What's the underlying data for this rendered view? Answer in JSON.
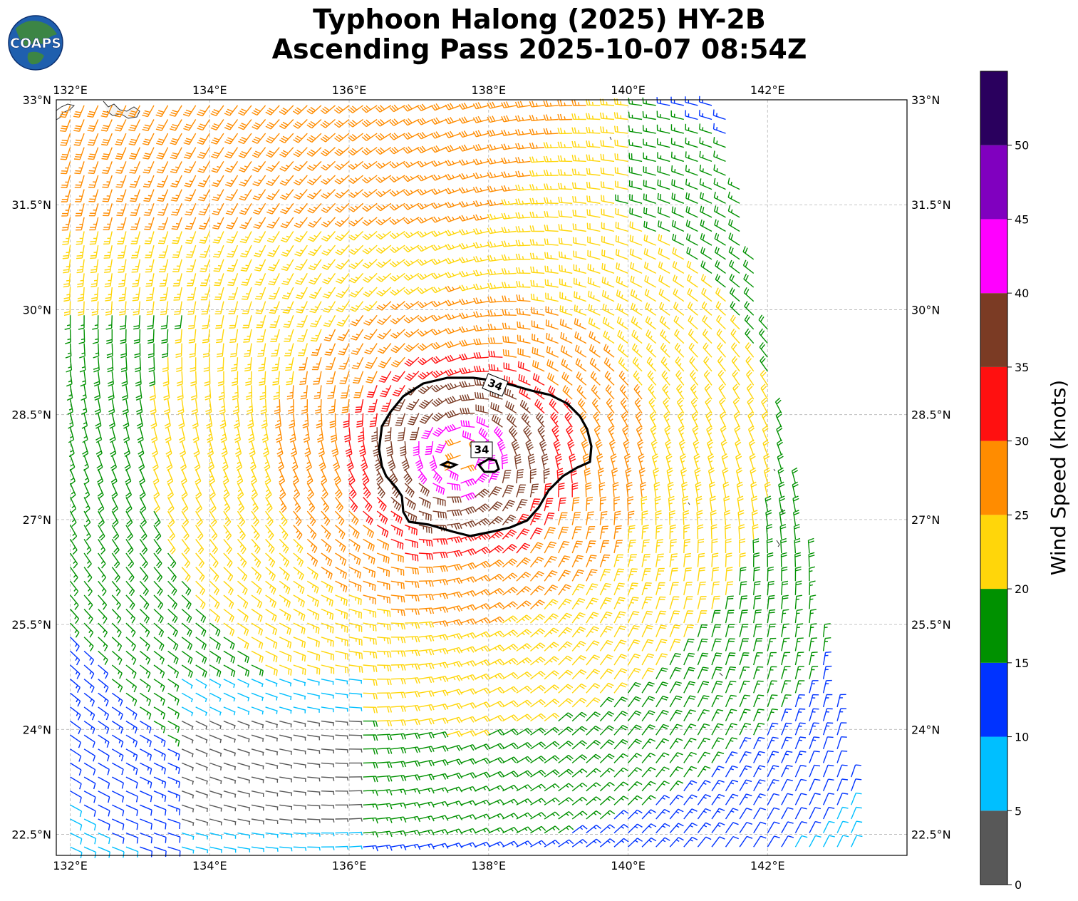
{
  "title": {
    "line1": "Typhoon Halong (2025) HY-2B",
    "line2": "Ascending Pass 2025-10-07 08:54Z"
  },
  "logo": {
    "text": "COAPS",
    "colors": {
      "ocean": "#1f5fae",
      "land": "#3f8a3a"
    }
  },
  "map": {
    "lon_range": [
      131.8,
      144.0
    ],
    "lat_range": [
      22.2,
      33.0
    ],
    "lon_ticks": [
      {
        "value": 132,
        "label": "132°E"
      },
      {
        "value": 134,
        "label": "134°E"
      },
      {
        "value": 136,
        "label": "136°E"
      },
      {
        "value": 138,
        "label": "138°E"
      },
      {
        "value": 140,
        "label": "140°E"
      },
      {
        "value": 142,
        "label": "142°E"
      }
    ],
    "lat_ticks": [
      {
        "value": 33,
        "label": "33°N"
      },
      {
        "value": 31.5,
        "label": "31.5°N"
      },
      {
        "value": 30,
        "label": "30°N"
      },
      {
        "value": 28.5,
        "label": "28.5°N"
      },
      {
        "value": 27,
        "label": "27°N"
      },
      {
        "value": 25.5,
        "label": "25.5°N"
      },
      {
        "value": 24,
        "label": "24°N"
      },
      {
        "value": 22.5,
        "label": "22.5°N"
      }
    ],
    "gridlines": true,
    "storm_center": {
      "lon": 137.6,
      "lat": 27.9
    },
    "contour": {
      "level": 34,
      "labels": [
        "34",
        "34"
      ]
    }
  },
  "colorbar": {
    "label": "Wind Speed (knots)",
    "ticks": [
      "0",
      "5",
      "10",
      "15",
      "20",
      "25",
      "30",
      "35",
      "40",
      "45",
      "50"
    ],
    "bins": [
      {
        "min": 0,
        "max": 5,
        "color": "#585858"
      },
      {
        "min": 5,
        "max": 10,
        "color": "#00bfff"
      },
      {
        "min": 10,
        "max": 15,
        "color": "#0033ff"
      },
      {
        "min": 15,
        "max": 20,
        "color": "#009100"
      },
      {
        "min": 20,
        "max": 25,
        "color": "#ffd60a"
      },
      {
        "min": 25,
        "max": 30,
        "color": "#ff8c00"
      },
      {
        "min": 30,
        "max": 35,
        "color": "#ff1010"
      },
      {
        "min": 35,
        "max": 40,
        "color": "#7b3b24"
      },
      {
        "min": 40,
        "max": 45,
        "color": "#ff00ff"
      },
      {
        "min": 45,
        "max": 50,
        "color": "#8000bf"
      },
      {
        "min": 50,
        "max": 55,
        "color": "#2a005e"
      }
    ]
  }
}
